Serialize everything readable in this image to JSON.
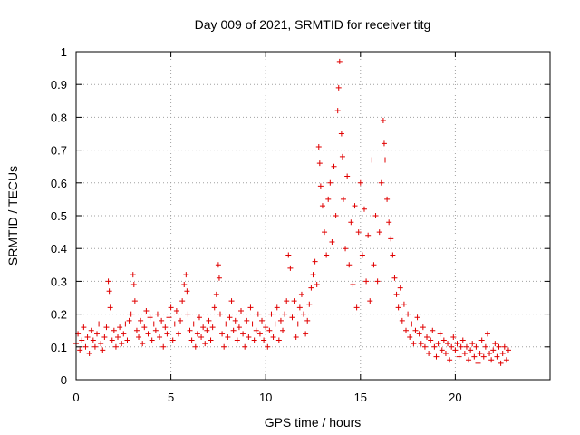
{
  "chart_data": {
    "type": "scatter",
    "title": "Day 009 of 2021, SRMTID for receiver titg",
    "xlabel": "GPS time / hours",
    "ylabel": "SRMTID / TECUs",
    "xlim": [
      0,
      25
    ],
    "ylim": [
      0,
      1
    ],
    "xticks": [
      0,
      5,
      10,
      15,
      20
    ],
    "xtick_labels": [
      "0",
      "5",
      "10",
      "15",
      "20"
    ],
    "yticks": [
      0,
      0.1,
      0.2,
      0.3,
      0.4,
      0.5,
      0.6,
      0.7,
      0.8,
      0.9,
      1
    ],
    "ytick_labels": [
      "0",
      "0.1",
      "0.2",
      "0.3",
      "0.4",
      "0.5",
      "0.6",
      "0.7",
      "0.8",
      "0.9",
      "1"
    ],
    "grid": true,
    "marker": "+",
    "color": "#e00000",
    "series": [
      {
        "name": "SRMTID",
        "points": [
          [
            0.0,
            0.11
          ],
          [
            0.1,
            0.14
          ],
          [
            0.2,
            0.09
          ],
          [
            0.3,
            0.12
          ],
          [
            0.4,
            0.16
          ],
          [
            0.5,
            0.1
          ],
          [
            0.6,
            0.13
          ],
          [
            0.7,
            0.08
          ],
          [
            0.8,
            0.15
          ],
          [
            0.9,
            0.12
          ],
          [
            1.0,
            0.1
          ],
          [
            1.1,
            0.14
          ],
          [
            1.2,
            0.17
          ],
          [
            1.3,
            0.11
          ],
          [
            1.4,
            0.09
          ],
          [
            1.5,
            0.13
          ],
          [
            1.6,
            0.16
          ],
          [
            1.7,
            0.3
          ],
          [
            1.75,
            0.27
          ],
          [
            1.8,
            0.22
          ],
          [
            1.9,
            0.12
          ],
          [
            2.0,
            0.15
          ],
          [
            2.1,
            0.1
          ],
          [
            2.2,
            0.13
          ],
          [
            2.3,
            0.16
          ],
          [
            2.4,
            0.11
          ],
          [
            2.5,
            0.14
          ],
          [
            2.6,
            0.17
          ],
          [
            2.7,
            0.12
          ],
          [
            2.8,
            0.18
          ],
          [
            2.9,
            0.2
          ],
          [
            3.0,
            0.32
          ],
          [
            3.05,
            0.29
          ],
          [
            3.1,
            0.24
          ],
          [
            3.2,
            0.15
          ],
          [
            3.3,
            0.13
          ],
          [
            3.4,
            0.18
          ],
          [
            3.5,
            0.11
          ],
          [
            3.6,
            0.16
          ],
          [
            3.7,
            0.21
          ],
          [
            3.8,
            0.14
          ],
          [
            3.9,
            0.19
          ],
          [
            4.0,
            0.12
          ],
          [
            4.1,
            0.17
          ],
          [
            4.2,
            0.15
          ],
          [
            4.3,
            0.2
          ],
          [
            4.4,
            0.13
          ],
          [
            4.5,
            0.18
          ],
          [
            4.6,
            0.1
          ],
          [
            4.7,
            0.16
          ],
          [
            4.8,
            0.14
          ],
          [
            4.9,
            0.19
          ],
          [
            5.0,
            0.22
          ],
          [
            5.1,
            0.12
          ],
          [
            5.2,
            0.17
          ],
          [
            5.3,
            0.21
          ],
          [
            5.4,
            0.14
          ],
          [
            5.5,
            0.18
          ],
          [
            5.6,
            0.24
          ],
          [
            5.7,
            0.29
          ],
          [
            5.8,
            0.32
          ],
          [
            5.85,
            0.27
          ],
          [
            5.9,
            0.2
          ],
          [
            6.0,
            0.15
          ],
          [
            6.1,
            0.12
          ],
          [
            6.2,
            0.17
          ],
          [
            6.3,
            0.1
          ],
          [
            6.4,
            0.14
          ],
          [
            6.5,
            0.19
          ],
          [
            6.6,
            0.13
          ],
          [
            6.7,
            0.16
          ],
          [
            6.8,
            0.11
          ],
          [
            6.9,
            0.15
          ],
          [
            7.0,
            0.18
          ],
          [
            7.1,
            0.12
          ],
          [
            7.2,
            0.16
          ],
          [
            7.3,
            0.22
          ],
          [
            7.4,
            0.26
          ],
          [
            7.5,
            0.35
          ],
          [
            7.55,
            0.31
          ],
          [
            7.6,
            0.2
          ],
          [
            7.7,
            0.14
          ],
          [
            7.8,
            0.1
          ],
          [
            7.9,
            0.17
          ],
          [
            8.0,
            0.13
          ],
          [
            8.1,
            0.19
          ],
          [
            8.2,
            0.24
          ],
          [
            8.3,
            0.15
          ],
          [
            8.4,
            0.18
          ],
          [
            8.5,
            0.12
          ],
          [
            8.6,
            0.16
          ],
          [
            8.7,
            0.21
          ],
          [
            8.8,
            0.14
          ],
          [
            8.9,
            0.1
          ],
          [
            9.0,
            0.18
          ],
          [
            9.1,
            0.13
          ],
          [
            9.2,
            0.22
          ],
          [
            9.3,
            0.17
          ],
          [
            9.4,
            0.12
          ],
          [
            9.5,
            0.15
          ],
          [
            9.6,
            0.2
          ],
          [
            9.7,
            0.14
          ],
          [
            9.8,
            0.18
          ],
          [
            9.9,
            0.12
          ],
          [
            10.0,
            0.16
          ],
          [
            10.1,
            0.1
          ],
          [
            10.2,
            0.15
          ],
          [
            10.3,
            0.2
          ],
          [
            10.4,
            0.13
          ],
          [
            10.5,
            0.17
          ],
          [
            10.6,
            0.22
          ],
          [
            10.7,
            0.12
          ],
          [
            10.8,
            0.18
          ],
          [
            10.9,
            0.15
          ],
          [
            11.0,
            0.2
          ],
          [
            11.1,
            0.24
          ],
          [
            11.2,
            0.38
          ],
          [
            11.3,
            0.34
          ],
          [
            11.4,
            0.19
          ],
          [
            11.5,
            0.24
          ],
          [
            11.6,
            0.13
          ],
          [
            11.7,
            0.17
          ],
          [
            11.8,
            0.22
          ],
          [
            11.9,
            0.26
          ],
          [
            12.0,
            0.2
          ],
          [
            12.1,
            0.14
          ],
          [
            12.2,
            0.18
          ],
          [
            12.3,
            0.23
          ],
          [
            12.4,
            0.28
          ],
          [
            12.5,
            0.32
          ],
          [
            12.6,
            0.36
          ],
          [
            12.7,
            0.29
          ],
          [
            12.8,
            0.71
          ],
          [
            12.85,
            0.66
          ],
          [
            12.9,
            0.59
          ],
          [
            13.0,
            0.53
          ],
          [
            13.1,
            0.45
          ],
          [
            13.2,
            0.38
          ],
          [
            13.3,
            0.55
          ],
          [
            13.4,
            0.6
          ],
          [
            13.5,
            0.42
          ],
          [
            13.6,
            0.65
          ],
          [
            13.7,
            0.5
          ],
          [
            13.8,
            0.82
          ],
          [
            13.85,
            0.89
          ],
          [
            13.9,
            0.97
          ],
          [
            14.0,
            0.75
          ],
          [
            14.05,
            0.68
          ],
          [
            14.1,
            0.55
          ],
          [
            14.2,
            0.4
          ],
          [
            14.3,
            0.62
          ],
          [
            14.4,
            0.35
          ],
          [
            14.5,
            0.48
          ],
          [
            14.6,
            0.29
          ],
          [
            14.7,
            0.53
          ],
          [
            14.8,
            0.22
          ],
          [
            14.9,
            0.45
          ],
          [
            15.0,
            0.6
          ],
          [
            15.1,
            0.38
          ],
          [
            15.2,
            0.52
          ],
          [
            15.3,
            0.3
          ],
          [
            15.4,
            0.44
          ],
          [
            15.5,
            0.24
          ],
          [
            15.6,
            0.67
          ],
          [
            15.7,
            0.35
          ],
          [
            15.8,
            0.5
          ],
          [
            15.9,
            0.3
          ],
          [
            16.0,
            0.45
          ],
          [
            16.1,
            0.6
          ],
          [
            16.2,
            0.79
          ],
          [
            16.25,
            0.72
          ],
          [
            16.3,
            0.67
          ],
          [
            16.4,
            0.55
          ],
          [
            16.5,
            0.48
          ],
          [
            16.6,
            0.43
          ],
          [
            16.7,
            0.38
          ],
          [
            16.8,
            0.31
          ],
          [
            16.9,
            0.26
          ],
          [
            17.0,
            0.22
          ],
          [
            17.1,
            0.28
          ],
          [
            17.2,
            0.18
          ],
          [
            17.3,
            0.23
          ],
          [
            17.4,
            0.15
          ],
          [
            17.5,
            0.2
          ],
          [
            17.6,
            0.13
          ],
          [
            17.7,
            0.17
          ],
          [
            17.8,
            0.11
          ],
          [
            17.9,
            0.15
          ],
          [
            18.0,
            0.19
          ],
          [
            18.1,
            0.14
          ],
          [
            18.2,
            0.11
          ],
          [
            18.3,
            0.16
          ],
          [
            18.4,
            0.1
          ],
          [
            18.5,
            0.13
          ],
          [
            18.6,
            0.08
          ],
          [
            18.7,
            0.12
          ],
          [
            18.8,
            0.15
          ],
          [
            18.9,
            0.1
          ],
          [
            19.0,
            0.07
          ],
          [
            19.1,
            0.11
          ],
          [
            19.2,
            0.14
          ],
          [
            19.3,
            0.09
          ],
          [
            19.4,
            0.12
          ],
          [
            19.5,
            0.08
          ],
          [
            19.6,
            0.11
          ],
          [
            19.7,
            0.06
          ],
          [
            19.8,
            0.1
          ],
          [
            19.9,
            0.13
          ],
          [
            20.0,
            0.09
          ],
          [
            20.1,
            0.11
          ],
          [
            20.2,
            0.07
          ],
          [
            20.3,
            0.1
          ],
          [
            20.4,
            0.12
          ],
          [
            20.5,
            0.08
          ],
          [
            20.6,
            0.1
          ],
          [
            20.7,
            0.06
          ],
          [
            20.8,
            0.09
          ],
          [
            20.9,
            0.11
          ],
          [
            21.0,
            0.07
          ],
          [
            21.1,
            0.1
          ],
          [
            21.2,
            0.05
          ],
          [
            21.3,
            0.08
          ],
          [
            21.4,
            0.12
          ],
          [
            21.5,
            0.07
          ],
          [
            21.6,
            0.1
          ],
          [
            21.7,
            0.14
          ],
          [
            21.8,
            0.08
          ],
          [
            21.9,
            0.06
          ],
          [
            22.0,
            0.09
          ],
          [
            22.1,
            0.11
          ],
          [
            22.2,
            0.07
          ],
          [
            22.3,
            0.1
          ],
          [
            22.4,
            0.05
          ],
          [
            22.5,
            0.08
          ],
          [
            22.6,
            0.1
          ],
          [
            22.7,
            0.06
          ],
          [
            22.8,
            0.09
          ]
        ]
      }
    ]
  }
}
